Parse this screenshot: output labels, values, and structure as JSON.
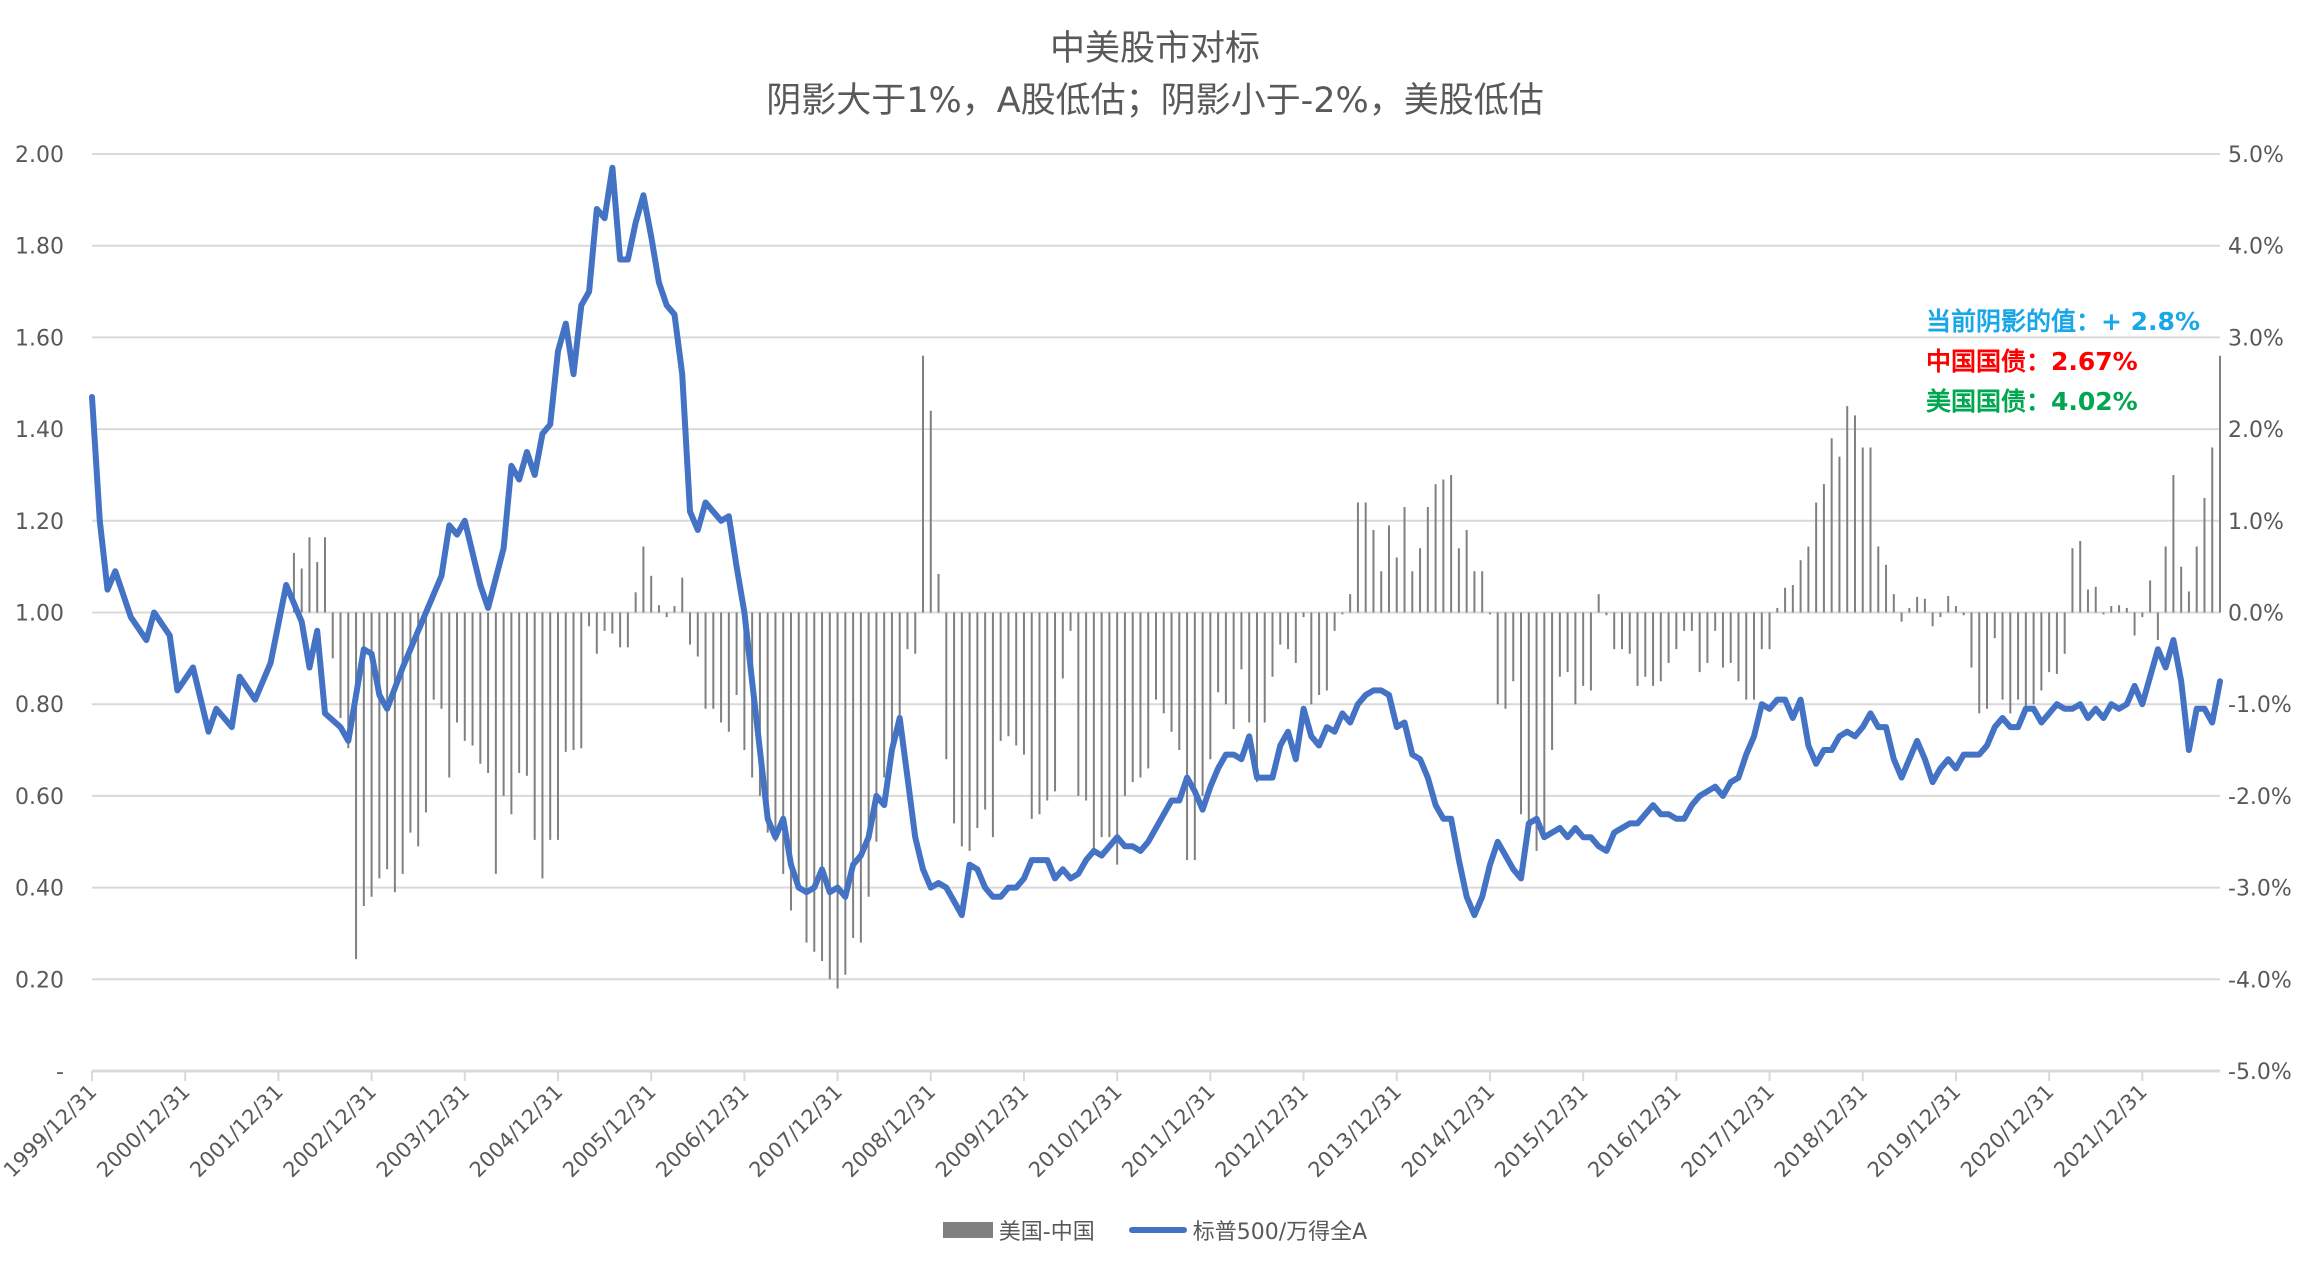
{
  "chart_data": {
    "type": "bar+line",
    "title": "中美股市对标",
    "subtitle": "阴影大于1%，A股低估；阴影小于-2%，美股低估",
    "y_left": {
      "range": [
        0,
        2.0
      ],
      "ticks": [
        "-",
        "0.20",
        "0.40",
        "0.60",
        "0.80",
        "1.00",
        "1.20",
        "1.40",
        "1.60",
        "1.80",
        "2.00"
      ]
    },
    "y_right": {
      "range": [
        -5.0,
        5.0
      ],
      "unit": "%",
      "ticks": [
        "-5.0%",
        "-4.0%",
        "-3.0%",
        "-2.0%",
        "-1.0%",
        "0.0%",
        "1.0%",
        "2.0%",
        "3.0%",
        "4.0%",
        "5.0%"
      ]
    },
    "x_ticks": [
      "1999/12/31",
      "2000/12/31",
      "2001/12/31",
      "2002/12/31",
      "2003/12/31",
      "2004/12/31",
      "2005/12/31",
      "2006/12/31",
      "2007/12/31",
      "2008/12/31",
      "2009/12/31",
      "2010/12/31",
      "2011/12/31",
      "2012/12/31",
      "2013/12/31",
      "2014/12/31",
      "2015/12/31",
      "2016/12/31",
      "2017/12/31",
      "2018/12/31",
      "2019/12/31",
      "2020/12/31",
      "2021/12/31"
    ],
    "grid": true,
    "legend_position": "bottom",
    "colors": {
      "bars": "#808080",
      "line": "#4472C4",
      "grid": "#D9D9D9",
      "text": "#595959"
    },
    "series": [
      {
        "name": "美国-中国",
        "type": "bar",
        "axis": "right",
        "unit": "%",
        "monthly_values_by_year": {
          "2002": [
            null,
            0.65,
            0.48,
            0.82,
            0.55,
            0.82,
            -0.5,
            -1.15,
            -1.48,
            -3.78,
            -3.2,
            -3.1
          ],
          "2003": [
            -2.9,
            -2.8,
            -3.05,
            -2.85,
            -2.4,
            -2.55,
            -2.18,
            -0.95,
            -1.05,
            -1.8,
            -1.2,
            -1.4
          ],
          "2004": [
            -1.45,
            -1.65,
            -1.75,
            -2.85,
            -2.0,
            -2.2,
            -1.75,
            -1.78,
            -2.48,
            -2.9,
            -2.48,
            -2.48
          ],
          "2005": [
            -1.52,
            -1.5,
            -1.48,
            -0.15,
            -0.45,
            -0.2,
            -0.23,
            -0.38,
            -0.38,
            0.22,
            0.72,
            0.4
          ],
          "2006": [
            0.08,
            -0.05,
            0.07,
            0.38,
            -0.35,
            -0.48,
            -1.05,
            -1.05,
            -1.2,
            -1.3,
            -0.9,
            -1.5
          ],
          "2007": [
            -1.8,
            -2.0,
            -2.4,
            -2.5,
            -2.85,
            -3.25,
            -3.0,
            -3.6,
            -3.7,
            -3.8,
            -4.0,
            -4.1
          ],
          "2008": [
            -3.95,
            -3.55,
            -3.6,
            -3.1,
            -2.5,
            -1.8,
            -1.4,
            -1.35,
            -0.4,
            -0.45,
            2.8,
            2.2
          ],
          "2009": [
            0.42,
            -1.6,
            -2.3,
            -2.55,
            -2.6,
            -2.35,
            -2.15,
            -2.45,
            -1.4,
            -1.35,
            -1.45,
            -1.55
          ],
          "2010": [
            -2.25,
            -2.2,
            -2.05,
            -1.95,
            -0.72,
            -0.2,
            -2.0,
            -2.05,
            -2.6,
            -2.45,
            -2.45,
            -2.75
          ],
          "2011": [
            -2.0,
            -1.85,
            -1.8,
            -1.7,
            -0.95,
            -1.1,
            -1.3,
            -1.5,
            -2.7,
            -2.7,
            -2.0,
            -1.6
          ],
          "2012": [
            -0.87,
            -1.0,
            -1.27,
            -0.62,
            -1.2,
            -1.85,
            -1.2,
            -0.7,
            -0.35,
            -0.4,
            -0.55,
            -0.05
          ],
          "2013": [
            -1.0,
            -0.9,
            -0.85,
            -0.2,
            -0.02,
            0.2,
            1.2,
            1.2,
            0.9,
            0.45,
            0.95,
            0.6
          ],
          "2014": [
            1.15,
            0.45,
            0.7,
            1.15,
            1.4,
            1.45,
            1.5,
            0.7,
            0.9,
            0.45,
            0.45,
            -0.02
          ],
          "2015": [
            -1.0,
            -1.05,
            -0.75,
            -2.2,
            -2.4,
            -2.6,
            -2.4,
            -1.5,
            -0.7,
            -0.65,
            -1.0,
            -0.8
          ],
          "2016": [
            -0.85,
            0.2,
            -0.03,
            -0.4,
            -0.4,
            -0.45,
            -0.8,
            -0.7,
            -0.8,
            -0.75,
            -0.55,
            -0.4
          ],
          "2017": [
            -0.2,
            -0.2,
            -0.65,
            -0.55,
            -0.2,
            -0.6,
            -0.55,
            -0.75,
            -0.95,
            -0.95,
            -0.4,
            -0.4
          ],
          "2018": [
            0.05,
            0.27,
            0.3,
            0.57,
            0.72,
            1.2,
            1.4,
            1.9,
            1.7,
            2.25,
            2.15,
            1.8
          ],
          "2019": [
            1.8,
            0.72,
            0.52,
            0.2,
            -0.1,
            0.05,
            0.17,
            0.15,
            -0.15,
            -0.05,
            0.18,
            0.07
          ],
          "2020": [
            -0.03,
            -0.6,
            -1.1,
            -1.05,
            -0.28,
            -0.95,
            -1.1,
            -0.95,
            -1.05,
            -1.0,
            -0.85,
            -0.65
          ],
          "2021": [
            -0.67,
            -0.45,
            0.7,
            0.78,
            0.25,
            0.28,
            -0.02,
            0.07,
            0.08,
            0.05,
            -0.25,
            -0.05
          ],
          "2022": [
            0.35,
            -0.3,
            0.72,
            1.5,
            0.5,
            0.23,
            0.72,
            1.25,
            1.8,
            2.8
          ]
        }
      },
      {
        "name": "标普500/万得全A",
        "type": "line",
        "axis": "left",
        "monthly_values_by_year": {
          "1999": [
            null,
            null,
            null,
            null,
            null,
            null,
            null,
            null,
            null,
            null,
            null,
            1.47
          ],
          "2000": [
            1.2,
            1.05,
            1.09,
            null,
            0.99,
            null,
            0.94,
            1.0,
            null,
            0.95,
            0.83,
            null
          ],
          "2001": [
            0.88,
            null,
            0.74,
            0.79,
            null,
            0.75,
            0.86,
            null,
            0.81,
            null,
            0.89,
            null
          ],
          "2002": [
            1.06,
            null,
            0.98,
            0.88,
            0.96,
            0.78,
            null,
            0.75,
            0.72,
            null,
            0.92,
            0.91
          ],
          "2003": [
            0.82,
            0.79,
            null,
            0.88,
            null,
            0.96,
            null,
            1.04,
            1.08,
            1.19,
            1.17,
            1.2
          ],
          "2004": [
            null,
            1.06,
            1.01,
            null,
            1.14,
            1.32,
            1.29,
            1.35,
            1.3,
            1.39,
            1.41,
            1.57
          ],
          "2005": [
            1.63,
            1.52,
            1.67,
            1.7,
            1.88,
            1.86,
            1.97,
            1.77,
            1.77,
            1.85,
            1.91,
            1.82
          ],
          "2006": [
            1.72,
            1.67,
            1.65,
            1.52,
            1.22,
            1.18,
            1.24,
            null,
            1.2,
            1.21,
            1.1,
            1.0
          ],
          "2007": [
            0.85,
            0.7,
            0.55,
            0.51,
            0.55,
            0.45,
            0.4,
            0.39,
            0.4,
            0.44,
            0.39,
            0.4
          ],
          "2008": [
            0.38,
            0.45,
            0.47,
            0.51,
            0.6,
            0.58,
            0.7,
            0.77,
            0.64,
            0.51,
            0.44,
            0.4
          ],
          "2009": [
            0.41,
            0.4,
            0.37,
            0.34,
            0.45,
            0.44,
            0.4,
            0.38,
            0.38,
            0.4,
            0.4,
            0.42
          ],
          "2010": [
            0.46,
            0.46,
            0.46,
            0.42,
            0.44,
            0.42,
            0.43,
            0.46,
            0.48,
            0.47,
            0.49,
            0.51
          ],
          "2011": [
            0.49,
            0.49,
            0.48,
            0.5,
            0.53,
            0.56,
            0.59,
            0.59,
            0.64,
            0.61,
            0.57,
            0.62
          ],
          "2012": [
            0.66,
            0.69,
            0.69,
            0.68,
            0.73,
            0.64,
            0.64,
            0.64,
            0.71,
            0.74,
            0.68,
            0.79
          ],
          "2013": [
            0.73,
            0.71,
            0.75,
            0.74,
            0.78,
            0.76,
            0.8,
            0.82,
            0.83,
            0.83,
            0.82,
            0.75
          ],
          "2014": [
            0.76,
            0.69,
            0.68,
            0.64,
            0.58,
            0.55,
            0.55,
            0.46,
            0.38,
            0.34,
            0.38,
            0.45
          ],
          "2015": [
            0.5,
            0.47,
            0.44,
            0.42,
            0.54,
            0.55,
            0.51,
            0.52,
            0.53,
            0.51,
            0.53,
            0.51
          ],
          "2016": [
            0.51,
            0.49,
            0.48,
            0.52,
            0.53,
            0.54,
            0.54,
            0.56,
            0.58,
            0.56,
            0.56,
            0.55
          ],
          "2017": [
            0.55,
            0.58,
            0.6,
            0.61,
            0.62,
            0.6,
            0.63,
            0.64,
            0.69,
            0.73,
            0.8,
            0.79
          ],
          "2018": [
            0.81,
            0.81,
            0.77,
            0.81,
            0.71,
            0.67,
            0.7,
            0.7,
            0.73,
            0.74,
            0.73,
            0.75
          ],
          "2019": [
            0.78,
            0.75,
            0.75,
            0.68,
            0.64,
            0.68,
            0.72,
            0.68,
            0.63,
            0.66,
            0.68,
            0.66
          ],
          "2020": [
            0.69,
            0.69,
            0.69,
            0.71,
            0.75,
            0.77,
            0.75,
            0.75,
            0.79,
            0.79,
            0.76,
            0.78
          ],
          "2021": [
            0.8,
            0.79,
            0.79,
            0.8,
            0.77,
            0.79,
            0.77,
            0.8,
            0.79,
            0.8,
            0.84,
            0.8
          ],
          "2022": [
            0.86,
            0.92,
            0.88,
            0.94,
            0.85,
            0.7,
            0.79,
            0.79,
            0.76,
            0.85
          ]
        }
      }
    ],
    "annotations": [
      {
        "text": "当前阴影的值：+ 2.8%",
        "color": "#1AA7E8"
      },
      {
        "text": "中国国债：2.67%",
        "color": "#FF0000"
      },
      {
        "text": "美国国债：4.02%",
        "color": "#00A650"
      }
    ]
  }
}
